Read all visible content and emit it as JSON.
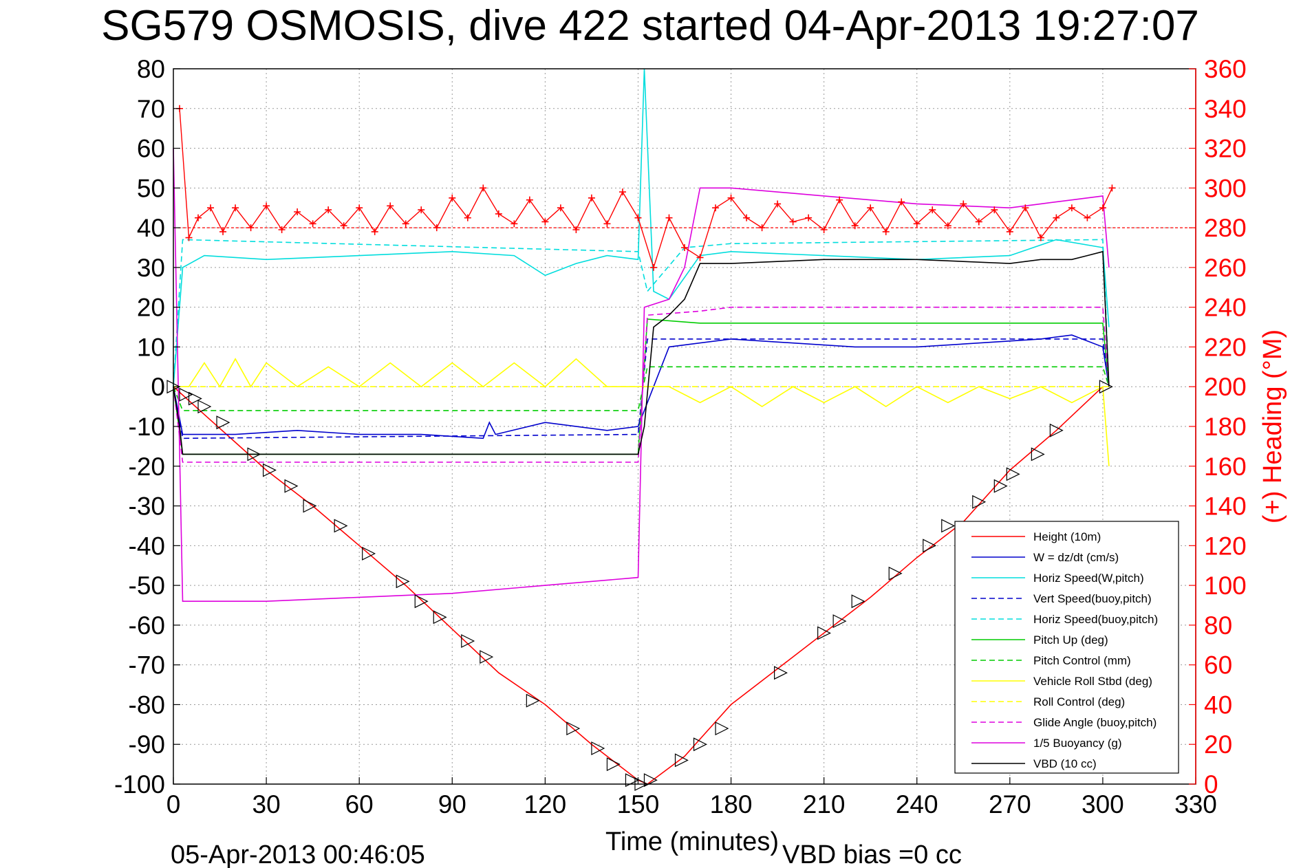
{
  "chart_data": {
    "type": "line",
    "title": "SG579 OSMOSIS, dive 422 started 04-Apr-2013 19:27:07",
    "xlabel": "Time (minutes)",
    "ylabel_right": "(+) Heading (°M)",
    "footer_left": "05-Apr-2013 00:46:05",
    "footer_right": "VBD bias =0 cc",
    "xlim": [
      0,
      330
    ],
    "ylim": [
      -100,
      80
    ],
    "ylim_right": [
      0,
      360
    ],
    "x_ticks": [
      "0",
      "30",
      "60",
      "90",
      "120",
      "150",
      "180",
      "210",
      "240",
      "270",
      "300",
      "330"
    ],
    "y_ticks": [
      "80",
      "70",
      "60",
      "50",
      "40",
      "30",
      "20",
      "10",
      "0",
      "-10",
      "-20",
      "-30",
      "-40",
      "-50",
      "-60",
      "-70",
      "-80",
      "-90",
      "-100"
    ],
    "y_ticks_right": [
      "360",
      "340",
      "320",
      "300",
      "280",
      "260",
      "240",
      "220",
      "200",
      "180",
      "160",
      "140",
      "120",
      "100",
      "80",
      "60",
      "40",
      "20",
      "0"
    ],
    "grid": true,
    "legend_position": "bottom-right",
    "colors": {
      "height": "#ff0000",
      "w": "#0000cc",
      "hspeed": "#00dddd",
      "pitch": "#00cc00",
      "roll": "#ffff00",
      "glide": "#dd00dd",
      "vbd": "#000000",
      "heading": "#ff0000"
    },
    "series": [
      {
        "name": "Height (10m)",
        "style": "solid",
        "color": "#ff0000",
        "x": [
          0,
          10,
          20,
          30,
          45,
          60,
          75,
          90,
          105,
          120,
          135,
          150,
          153,
          165,
          180,
          195,
          210,
          225,
          240,
          255,
          270,
          285,
          300
        ],
        "y": [
          0,
          -7,
          -14,
          -21,
          -30,
          -40,
          -50,
          -61,
          -72,
          -80,
          -90,
          -99,
          -100,
          -93,
          -80,
          -71,
          -62,
          -53,
          -43,
          -34,
          -21,
          -11,
          0
        ]
      },
      {
        "name": "W = dz/dt (cm/s)",
        "style": "solid",
        "color": "#0000cc",
        "x": [
          0,
          3,
          20,
          40,
          60,
          80,
          100,
          102,
          104,
          120,
          140,
          150,
          155,
          160,
          180,
          200,
          220,
          240,
          260,
          280,
          290,
          300,
          302
        ],
        "y": [
          0,
          -12,
          -12,
          -11,
          -12,
          -12,
          -13,
          -9,
          -12,
          -9,
          -11,
          -10,
          0,
          10,
          12,
          11,
          10,
          10,
          11,
          12,
          13,
          10,
          0
        ]
      },
      {
        "name": "Horiz Speed(W,pitch)",
        "style": "solid",
        "color": "#00dddd",
        "x": [
          0,
          3,
          10,
          30,
          60,
          90,
          110,
          120,
          130,
          140,
          150,
          152,
          155,
          160,
          170,
          180,
          210,
          240,
          270,
          285,
          300,
          302
        ],
        "y": [
          0,
          30,
          33,
          32,
          33,
          34,
          33,
          28,
          31,
          33,
          32,
          80,
          24,
          22,
          33,
          34,
          33,
          32,
          33,
          37,
          35,
          15
        ]
      },
      {
        "name": "Vert Speed(buoy,pitch)",
        "style": "dashed",
        "color": "#0000cc",
        "x": [
          0,
          3,
          150,
          153,
          300,
          302
        ],
        "y": [
          0,
          -13,
          -12,
          12,
          12,
          0
        ]
      },
      {
        "name": "Horiz Speed(buoy,pitch)",
        "style": "dashed",
        "color": "#00dddd",
        "x": [
          0,
          3,
          150,
          153,
          165,
          180,
          300,
          302
        ],
        "y": [
          0,
          37,
          34,
          24,
          35,
          36,
          37,
          0
        ]
      },
      {
        "name": "Pitch Up (deg)",
        "style": "solid",
        "color": "#00cc00",
        "x": [
          0,
          3,
          150,
          153,
          170,
          300,
          302
        ],
        "y": [
          0,
          -17,
          -17,
          17,
          16,
          16,
          0
        ]
      },
      {
        "name": "Pitch Control (mm)",
        "style": "dashed",
        "color": "#00cc00",
        "x": [
          0,
          3,
          150,
          153,
          300,
          302
        ],
        "y": [
          0,
          -6,
          -6,
          5,
          5,
          0
        ]
      },
      {
        "name": "Vehicle Roll Stbd (deg)",
        "style": "solid",
        "color": "#ffff00",
        "x": [
          0,
          5,
          10,
          15,
          20,
          25,
          30,
          40,
          50,
          60,
          70,
          80,
          90,
          100,
          110,
          120,
          130,
          140,
          150,
          160,
          170,
          180,
          190,
          200,
          210,
          220,
          230,
          240,
          250,
          260,
          270,
          280,
          290,
          300,
          302
        ],
        "y": [
          0,
          0,
          6,
          0,
          7,
          0,
          6,
          0,
          5,
          0,
          6,
          0,
          6,
          0,
          6,
          0,
          7,
          0,
          0,
          0,
          -4,
          0,
          -5,
          0,
          -4,
          0,
          -5,
          0,
          -4,
          0,
          -3,
          0,
          -4,
          0,
          -20
        ]
      },
      {
        "name": "Roll Control (deg)",
        "style": "dashed",
        "color": "#ffff00",
        "x": [
          0,
          150,
          153,
          300,
          302
        ],
        "y": [
          0,
          0,
          0,
          0,
          0
        ]
      },
      {
        "name": "Glide Angle (buoy,pitch)",
        "style": "dashed",
        "color": "#dd00dd",
        "x": [
          0,
          3,
          150,
          153,
          170,
          180,
          300,
          302
        ],
        "y": [
          0,
          -19,
          -19,
          18,
          19,
          20,
          20,
          0
        ]
      },
      {
        "name": "1/5 Buoyancy (g)",
        "style": "solid",
        "color": "#dd00dd",
        "x": [
          0,
          3,
          30,
          60,
          90,
          120,
          150,
          152,
          160,
          165,
          170,
          180,
          210,
          240,
          270,
          280,
          290,
          300,
          302
        ],
        "y": [
          60,
          -54,
          -54,
          -53,
          -52,
          -50,
          -48,
          20,
          22,
          30,
          50,
          50,
          48,
          46,
          45,
          46,
          47,
          48,
          30
        ]
      },
      {
        "name": "VBD (10 cc)",
        "style": "solid",
        "color": "#000000",
        "x": [
          0,
          2,
          3,
          150,
          152,
          155,
          160,
          165,
          170,
          180,
          210,
          240,
          270,
          280,
          290,
          295,
          300,
          302
        ],
        "y": [
          0,
          -10,
          -17,
          -17,
          -10,
          15,
          18,
          22,
          31,
          31,
          32,
          32,
          31,
          32,
          32,
          33,
          34,
          0
        ]
      }
    ],
    "heading_series": {
      "name": "Heading",
      "marker": "+",
      "color": "#ff0000",
      "reference": 280,
      "x": [
        2,
        5,
        8,
        12,
        16,
        20,
        25,
        30,
        35,
        40,
        45,
        50,
        55,
        60,
        65,
        70,
        75,
        80,
        85,
        90,
        95,
        100,
        105,
        110,
        115,
        120,
        125,
        130,
        135,
        140,
        145,
        150,
        155,
        160,
        165,
        170,
        175,
        180,
        185,
        190,
        195,
        200,
        205,
        210,
        215,
        220,
        225,
        230,
        235,
        240,
        245,
        250,
        255,
        260,
        265,
        270,
        275,
        280,
        285,
        290,
        295,
        300,
        303
      ],
      "y": [
        340,
        275,
        285,
        290,
        278,
        290,
        280,
        291,
        279,
        288,
        282,
        289,
        281,
        290,
        278,
        291,
        282,
        289,
        280,
        295,
        285,
        300,
        287,
        282,
        294,
        283,
        290,
        279,
        295,
        282,
        298,
        285,
        260,
        285,
        270,
        265,
        290,
        295,
        285,
        280,
        292,
        283,
        285,
        279,
        294,
        281,
        290,
        278,
        293,
        282,
        289,
        281,
        292,
        283,
        289,
        278,
        290,
        275,
        285,
        290,
        285,
        290,
        300
      ]
    },
    "dive_markers": {
      "x": [
        0,
        4,
        7,
        10,
        16,
        26,
        31,
        38,
        44,
        54,
        63,
        74,
        80,
        86,
        95,
        101,
        116,
        129,
        137,
        142,
        148,
        151,
        154,
        164,
        170,
        177,
        196,
        210,
        215,
        221,
        233,
        244,
        250,
        260,
        267,
        271,
        279,
        285,
        301
      ],
      "y": [
        0,
        -2,
        -3,
        -5,
        -9,
        -17,
        -21,
        -25,
        -30,
        -35,
        -42,
        -49,
        -54,
        -58,
        -64,
        -68,
        -79,
        -86,
        -91,
        -95,
        -99,
        -100,
        -99,
        -94,
        -90,
        -86,
        -72,
        -62,
        -59,
        -54,
        -47,
        -40,
        -35,
        -29,
        -25,
        -22,
        -17,
        -11,
        0
      ]
    }
  }
}
